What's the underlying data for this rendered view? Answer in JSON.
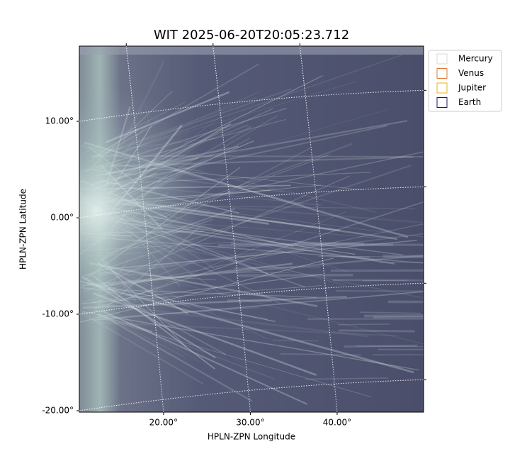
{
  "chart_data": {
    "type": "image",
    "title": "WIT 2025-06-20T20:05:23.712",
    "xlabel": "HPLN-ZPN Longitude",
    "ylabel": "HPLN-ZPN Latitude",
    "xlim": [
      10.3,
      49.96
    ],
    "ylim": [
      -20.15,
      17.8
    ],
    "xticks": [
      {
        "value": 20,
        "label": "20.00°"
      },
      {
        "value": 30,
        "label": "30.00°"
      },
      {
        "value": 40,
        "label": "40.00°"
      }
    ],
    "yticks": [
      {
        "value": 10,
        "label": "10.00°"
      },
      {
        "value": 0,
        "label": "0.00°"
      },
      {
        "value": -10,
        "label": "-10.00°"
      },
      {
        "value": -20,
        "label": "-20.00°"
      }
    ],
    "grid": true,
    "legend": "upper right",
    "series": [
      {
        "name": "Mercury",
        "color": "#d9d9d9"
      },
      {
        "name": "Venus",
        "color": "#e07b39"
      },
      {
        "name": "Jupiter",
        "color": "#e6b422"
      },
      {
        "name": "Earth",
        "color": "#1a1a6e"
      }
    ]
  }
}
